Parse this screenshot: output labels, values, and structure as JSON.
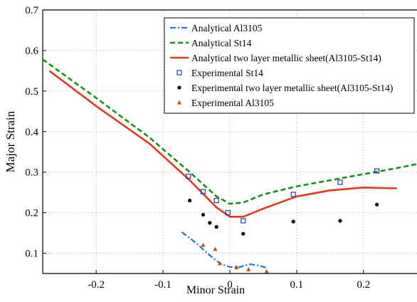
{
  "chart_data": {
    "type": "line",
    "xlabel": "Minor Strain",
    "ylabel": "Major Strain",
    "xlim": [
      -0.28,
      0.28
    ],
    "ylim": [
      0.05,
      0.7
    ],
    "xticks": [
      -0.2,
      -0.1,
      0,
      0.1,
      0.2
    ],
    "xtick_labels": [
      "-0.2",
      "-0.1",
      "0",
      "0.1",
      "0.2"
    ],
    "yticks": [
      0.1,
      0.2,
      0.3,
      0.4,
      0.5,
      0.6,
      0.7
    ],
    "ytick_labels": [
      "0.1",
      "0.2",
      "0.3",
      "0.4",
      "0.5",
      "0.6",
      "0.7"
    ],
    "grid": "dotted",
    "legend_position": "top-right",
    "series": [
      {
        "name": "Analytical Al3105",
        "kind": "line",
        "style": "dash-dot",
        "color": "#1f77d4",
        "x": [
          -0.072,
          -0.06,
          -0.045,
          -0.03,
          -0.015,
          0.0,
          0.015,
          0.03,
          0.045,
          0.055
        ],
        "y": [
          0.152,
          0.138,
          0.117,
          0.095,
          0.075,
          0.066,
          0.066,
          0.073,
          0.069,
          0.064
        ]
      },
      {
        "name": "Analytical St14",
        "kind": "line",
        "style": "dashed",
        "color": "#1a8f1a",
        "x": [
          -0.28,
          -0.2,
          -0.12,
          -0.06,
          -0.02,
          0.0,
          0.02,
          0.05,
          0.1,
          0.15,
          0.2,
          0.25,
          0.28
        ],
        "y": [
          0.578,
          0.483,
          0.385,
          0.3,
          0.24,
          0.222,
          0.225,
          0.245,
          0.265,
          0.28,
          0.295,
          0.31,
          0.32
        ]
      },
      {
        "name": "Analytical two layer metallic sheet(Al3105-St14)",
        "kind": "line",
        "style": "solid",
        "color": "#e03a1e",
        "x": [
          -0.27,
          -0.2,
          -0.12,
          -0.06,
          -0.02,
          0.0,
          0.02,
          0.05,
          0.1,
          0.15,
          0.2,
          0.25
        ],
        "y": [
          0.55,
          0.463,
          0.37,
          0.28,
          0.213,
          0.19,
          0.19,
          0.21,
          0.24,
          0.255,
          0.262,
          0.26
        ]
      },
      {
        "name": "Experimental St14",
        "kind": "scatter",
        "marker": "square",
        "color": "#1f3fa8",
        "x": [
          -0.062,
          -0.04,
          -0.02,
          -0.003,
          0.02,
          0.095,
          0.165,
          0.22
        ],
        "y": [
          0.29,
          0.252,
          0.23,
          0.2,
          0.18,
          0.245,
          0.275,
          0.303
        ]
      },
      {
        "name": "Experimental two layer metallic sheet(Al3105-St14)",
        "kind": "scatter",
        "marker": "circle",
        "color": "#000000",
        "x": [
          -0.06,
          -0.04,
          -0.03,
          -0.02,
          0.02,
          0.095,
          0.165,
          0.22
        ],
        "y": [
          0.23,
          0.195,
          0.175,
          0.165,
          0.148,
          0.178,
          0.18,
          0.22
        ]
      },
      {
        "name": "Experimental Al3105",
        "kind": "scatter",
        "marker": "triangle",
        "color": "#b5531c",
        "x": [
          -0.04,
          -0.022,
          -0.015,
          0.01,
          0.028,
          0.055
        ],
        "y": [
          0.12,
          0.11,
          0.075,
          0.065,
          0.06,
          0.055
        ]
      }
    ]
  }
}
